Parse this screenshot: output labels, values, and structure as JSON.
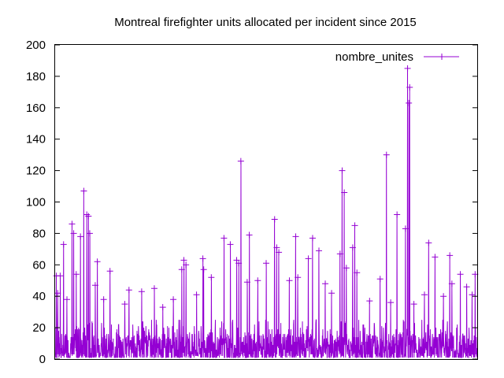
{
  "chart_data": {
    "type": "line",
    "title": "Montreal firefighter units allocated per incident since 2015",
    "xlabel": "",
    "ylabel": "",
    "ylim": [
      0,
      200
    ],
    "yticks": [
      0,
      20,
      40,
      60,
      80,
      100,
      120,
      140,
      160,
      180,
      200
    ],
    "ytick_labels": [
      "0",
      "20",
      "40",
      "60",
      "80",
      "100",
      "120",
      "140",
      "160",
      "180",
      "200"
    ],
    "grid": false,
    "legend": {
      "position": "top-right"
    },
    "series": [
      {
        "name": "nombre_unites",
        "color": "#9400d3",
        "peaks": [
          {
            "x": 0.003,
            "y": 53
          },
          {
            "x": 0.006,
            "y": 42
          },
          {
            "x": 0.012,
            "y": 53
          },
          {
            "x": 0.02,
            "y": 73
          },
          {
            "x": 0.028,
            "y": 38
          },
          {
            "x": 0.04,
            "y": 86
          },
          {
            "x": 0.044,
            "y": 80
          },
          {
            "x": 0.05,
            "y": 54
          },
          {
            "x": 0.06,
            "y": 78
          },
          {
            "x": 0.068,
            "y": 107
          },
          {
            "x": 0.075,
            "y": 92
          },
          {
            "x": 0.079,
            "y": 91
          },
          {
            "x": 0.082,
            "y": 80
          },
          {
            "x": 0.095,
            "y": 47
          },
          {
            "x": 0.1,
            "y": 62
          },
          {
            "x": 0.115,
            "y": 38
          },
          {
            "x": 0.13,
            "y": 56
          },
          {
            "x": 0.165,
            "y": 35
          },
          {
            "x": 0.175,
            "y": 44
          },
          {
            "x": 0.205,
            "y": 43
          },
          {
            "x": 0.235,
            "y": 45
          },
          {
            "x": 0.255,
            "y": 33
          },
          {
            "x": 0.28,
            "y": 38
          },
          {
            "x": 0.3,
            "y": 57
          },
          {
            "x": 0.305,
            "y": 63
          },
          {
            "x": 0.31,
            "y": 60
          },
          {
            "x": 0.335,
            "y": 41
          },
          {
            "x": 0.35,
            "y": 64
          },
          {
            "x": 0.352,
            "y": 57
          },
          {
            "x": 0.37,
            "y": 52
          },
          {
            "x": 0.4,
            "y": 77
          },
          {
            "x": 0.415,
            "y": 73
          },
          {
            "x": 0.43,
            "y": 63
          },
          {
            "x": 0.435,
            "y": 61
          },
          {
            "x": 0.44,
            "y": 126
          },
          {
            "x": 0.455,
            "y": 49
          },
          {
            "x": 0.46,
            "y": 79
          },
          {
            "x": 0.48,
            "y": 50
          },
          {
            "x": 0.5,
            "y": 61
          },
          {
            "x": 0.52,
            "y": 89
          },
          {
            "x": 0.525,
            "y": 71
          },
          {
            "x": 0.53,
            "y": 68
          },
          {
            "x": 0.555,
            "y": 50
          },
          {
            "x": 0.57,
            "y": 78
          },
          {
            "x": 0.575,
            "y": 52
          },
          {
            "x": 0.6,
            "y": 64
          },
          {
            "x": 0.61,
            "y": 77
          },
          {
            "x": 0.625,
            "y": 69
          },
          {
            "x": 0.64,
            "y": 48
          },
          {
            "x": 0.655,
            "y": 42
          },
          {
            "x": 0.675,
            "y": 67
          },
          {
            "x": 0.68,
            "y": 120
          },
          {
            "x": 0.685,
            "y": 106
          },
          {
            "x": 0.69,
            "y": 58
          },
          {
            "x": 0.705,
            "y": 71
          },
          {
            "x": 0.71,
            "y": 85
          },
          {
            "x": 0.715,
            "y": 55
          },
          {
            "x": 0.745,
            "y": 37
          },
          {
            "x": 0.77,
            "y": 51
          },
          {
            "x": 0.785,
            "y": 130
          },
          {
            "x": 0.795,
            "y": 36
          },
          {
            "x": 0.81,
            "y": 92
          },
          {
            "x": 0.83,
            "y": 83
          },
          {
            "x": 0.835,
            "y": 185
          },
          {
            "x": 0.84,
            "y": 173
          },
          {
            "x": 0.838,
            "y": 163
          },
          {
            "x": 0.85,
            "y": 35
          },
          {
            "x": 0.875,
            "y": 41
          },
          {
            "x": 0.885,
            "y": 74
          },
          {
            "x": 0.9,
            "y": 65
          },
          {
            "x": 0.92,
            "y": 40
          },
          {
            "x": 0.935,
            "y": 66
          },
          {
            "x": 0.94,
            "y": 48
          },
          {
            "x": 0.96,
            "y": 54
          },
          {
            "x": 0.975,
            "y": 46
          },
          {
            "x": 0.988,
            "y": 41
          },
          {
            "x": 0.995,
            "y": 54
          }
        ]
      }
    ]
  }
}
